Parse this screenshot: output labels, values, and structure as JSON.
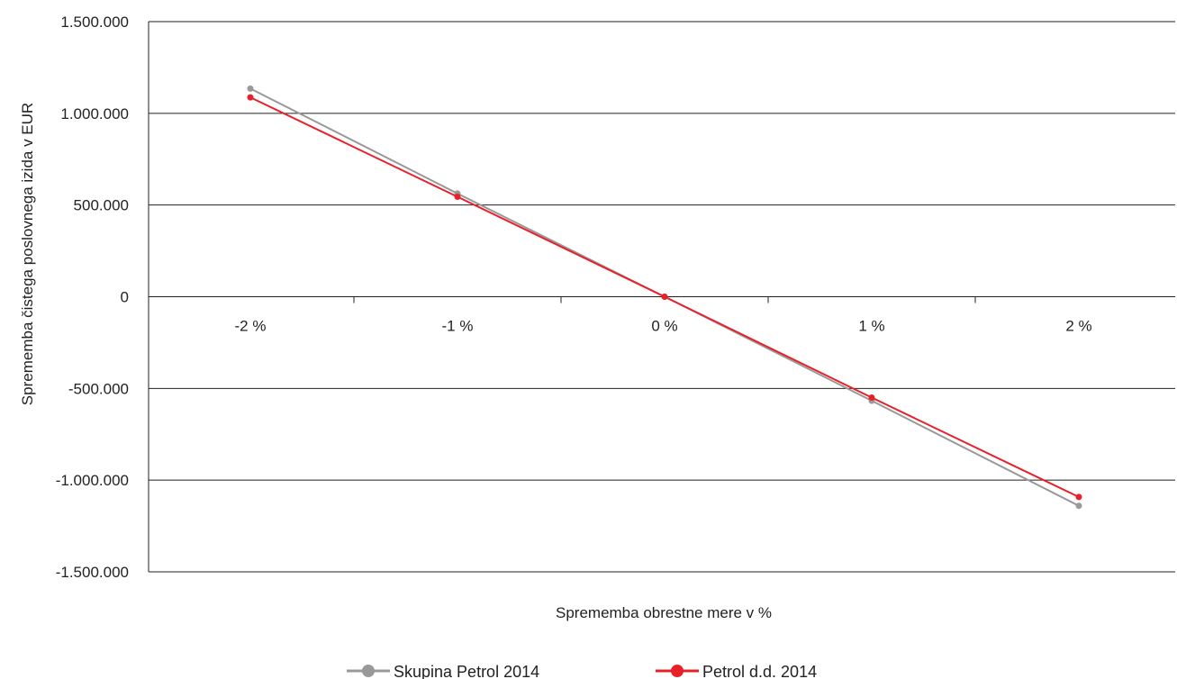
{
  "chart_data": {
    "type": "line",
    "title": "",
    "xlabel": "Sprememba obrestne mere v %",
    "ylabel": "Sprememba čistega poslovnega izida v EUR",
    "categories": [
      "-2 %",
      "-1 %",
      "0 %",
      "1 %",
      "2 %"
    ],
    "ylim": [
      -1500000,
      1500000
    ],
    "yticks": [
      1500000,
      1000000,
      500000,
      0,
      -500000,
      -1000000,
      -1500000
    ],
    "ytick_labels": [
      "1.500.000",
      "1.000.000",
      "500.000",
      "0",
      "-500.000",
      "-1.000.000",
      "-1.500.000"
    ],
    "grid": true,
    "legend_position": "bottom",
    "series": [
      {
        "name": "Skupina Petrol 2014",
        "color": "#999999",
        "values": [
          1135000,
          563000,
          0,
          -567000,
          -1140000
        ]
      },
      {
        "name": "Petrol d.d. 2014",
        "color": "#e8202a",
        "values": [
          1087000,
          545000,
          0,
          -550000,
          -1092000
        ]
      }
    ]
  }
}
